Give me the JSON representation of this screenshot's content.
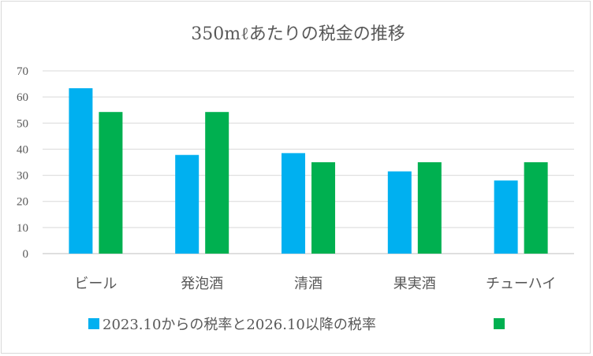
{
  "chart_data": {
    "type": "bar",
    "title": "350mℓあたりの税金の推移",
    "categories": [
      "ビール",
      "発泡酒",
      "清酒",
      "果実酒",
      "チューハイ"
    ],
    "series": [
      {
        "name": "2023.10からの税率と2026.10以降の税率",
        "color": "#00b0f0",
        "values": [
          63.35,
          37.8,
          38.5,
          31.5,
          28
        ]
      },
      {
        "name": "",
        "color": "#00b050",
        "values": [
          54.25,
          54.25,
          35,
          35,
          35
        ]
      }
    ],
    "yticks": [
      "0",
      "10",
      "20",
      "30",
      "40",
      "50",
      "60",
      "70"
    ],
    "ylim": [
      0,
      70
    ],
    "grid": true,
    "legend_position": "bottom"
  }
}
